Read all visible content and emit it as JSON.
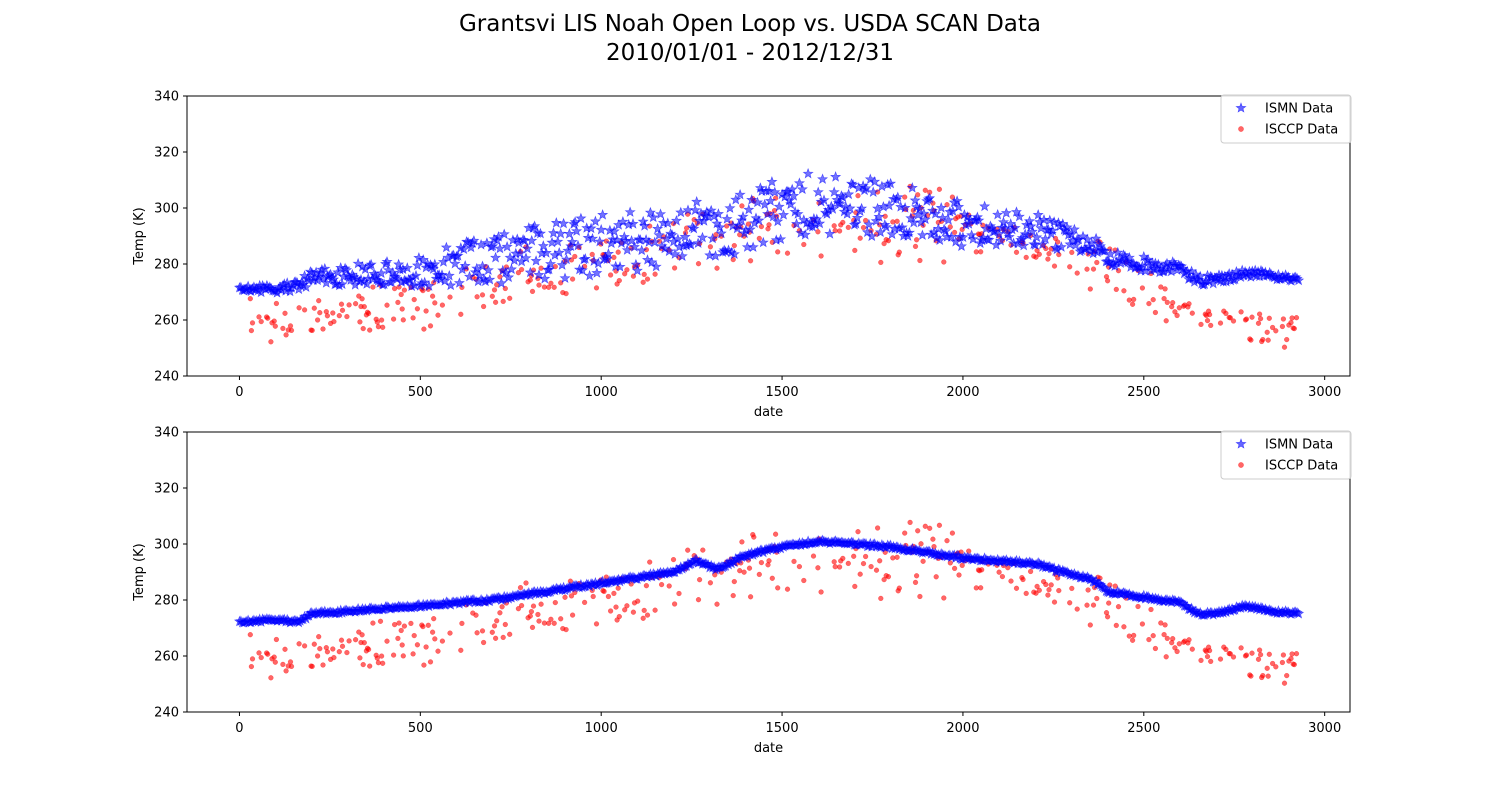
{
  "figure": {
    "title_line1": "Grantsvi LIS Noah Open Loop vs. USDA SCAN Data",
    "title_line2": "2010/01/01 - 2012/12/31"
  },
  "chart_data": [
    {
      "type": "scatter",
      "xlabel": "date",
      "ylabel": "Temp (K)",
      "xlim": [
        -145,
        3070
      ],
      "ylim": [
        240,
        340
      ],
      "xticks": [
        0,
        500,
        1000,
        1500,
        2000,
        2500,
        3000
      ],
      "yticks": [
        240,
        260,
        280,
        300,
        320,
        340
      ],
      "legend_position": "top-right",
      "x_count": 2930,
      "series": [
        {
          "name": "ISMN Data",
          "marker": "star",
          "color": "#0000ff",
          "trend": [
            [
              0,
              271
            ],
            [
              100,
              271
            ],
            [
              160,
              272
            ],
            [
              200,
              275
            ],
            [
              300,
              276
            ],
            [
              400,
              276
            ],
            [
              500,
              278
            ],
            [
              600,
              280
            ],
            [
              700,
              281
            ],
            [
              800,
              284
            ],
            [
              900,
              285
            ],
            [
              1000,
              287
            ],
            [
              1100,
              288
            ],
            [
              1200,
              290
            ],
            [
              1260,
              294
            ],
            [
              1320,
              290
            ],
            [
              1400,
              296
            ],
            [
              1500,
              300
            ],
            [
              1600,
              302
            ],
            [
              1700,
              300
            ],
            [
              1800,
              300
            ],
            [
              1900,
              297
            ],
            [
              2000,
              294
            ],
            [
              2100,
              293
            ],
            [
              2200,
              292
            ],
            [
              2300,
              289
            ],
            [
              2350,
              288
            ],
            [
              2400,
              282
            ],
            [
              2500,
              280
            ],
            [
              2600,
              278
            ],
            [
              2650,
              274
            ],
            [
              2700,
              274
            ],
            [
              2780,
              277
            ],
            [
              2850,
              276
            ],
            [
              2930,
              274
            ]
          ],
          "spread": [
            [
              0,
              1
            ],
            [
              150,
              2
            ],
            [
              400,
              5
            ],
            [
              700,
              9
            ],
            [
              1000,
              11
            ],
            [
              1300,
              10
            ],
            [
              1500,
              12
            ],
            [
              1800,
              10
            ],
            [
              2000,
              8
            ],
            [
              2200,
              6
            ],
            [
              2400,
              3
            ],
            [
              2930,
              1
            ]
          ]
        },
        {
          "name": "ISCCP Data",
          "marker": "circle",
          "color": "#ff0000",
          "trend": [
            [
              0,
              261
            ],
            [
              100,
              259
            ],
            [
              200,
              261
            ],
            [
              300,
              263
            ],
            [
              400,
              265
            ],
            [
              500,
              266
            ],
            [
              600,
              268
            ],
            [
              700,
              271
            ],
            [
              800,
              275
            ],
            [
              900,
              277
            ],
            [
              1000,
              280
            ],
            [
              1100,
              282
            ],
            [
              1200,
              285
            ],
            [
              1300,
              289
            ],
            [
              1400,
              293
            ],
            [
              1500,
              296
            ],
            [
              1600,
              297
            ],
            [
              1700,
              297
            ],
            [
              1800,
              297
            ],
            [
              1900,
              296
            ],
            [
              2000,
              293
            ],
            [
              2100,
              290
            ],
            [
              2200,
              288
            ],
            [
              2300,
              283
            ],
            [
              2400,
              278
            ],
            [
              2500,
              270
            ],
            [
              2600,
              264
            ],
            [
              2700,
              260
            ],
            [
              2800,
              259
            ],
            [
              2930,
              255
            ]
          ],
          "spread": [
            [
              0,
              6
            ],
            [
              500,
              8
            ],
            [
              1000,
              9
            ],
            [
              1500,
              13
            ],
            [
              1800,
              14
            ],
            [
              2000,
              11
            ],
            [
              2300,
              8
            ],
            [
              2600,
              7
            ],
            [
              2930,
              6
            ]
          ]
        }
      ]
    },
    {
      "type": "scatter",
      "xlabel": "date",
      "ylabel": "Temp (K)",
      "xlim": [
        -145,
        3070
      ],
      "ylim": [
        240,
        340
      ],
      "xticks": [
        0,
        500,
        1000,
        1500,
        2000,
        2500,
        3000
      ],
      "yticks": [
        240,
        260,
        280,
        300,
        320,
        340
      ],
      "legend_position": "top-right",
      "x_count": 2930,
      "series": [
        {
          "name": "ISMN Data",
          "marker": "star",
          "color": "#0000ff",
          "trend": [
            [
              0,
              272
            ],
            [
              100,
              273
            ],
            [
              160,
              272
            ],
            [
              200,
              275
            ],
            [
              300,
              276
            ],
            [
              400,
              277
            ],
            [
              500,
              278
            ],
            [
              600,
              279
            ],
            [
              700,
              280
            ],
            [
              800,
              282
            ],
            [
              900,
              284
            ],
            [
              1000,
              286
            ],
            [
              1100,
              288
            ],
            [
              1200,
              290
            ],
            [
              1260,
              294
            ],
            [
              1320,
              291
            ],
            [
              1400,
              296
            ],
            [
              1500,
              299
            ],
            [
              1600,
              301
            ],
            [
              1700,
              300
            ],
            [
              1800,
              299
            ],
            [
              1900,
              297
            ],
            [
              2000,
              295
            ],
            [
              2100,
              294
            ],
            [
              2200,
              293
            ],
            [
              2300,
              289
            ],
            [
              2350,
              288
            ],
            [
              2400,
              283
            ],
            [
              2500,
              281
            ],
            [
              2600,
              279
            ],
            [
              2650,
              275
            ],
            [
              2700,
              275
            ],
            [
              2780,
              278
            ],
            [
              2850,
              276
            ],
            [
              2930,
              275
            ]
          ],
          "spread": [
            [
              0,
              0.6
            ],
            [
              2930,
              0.6
            ]
          ]
        },
        {
          "name": "ISCCP Data",
          "marker": "circle",
          "color": "#ff0000",
          "trend": [
            [
              0,
              261
            ],
            [
              100,
              259
            ],
            [
              200,
              261
            ],
            [
              300,
              263
            ],
            [
              400,
              265
            ],
            [
              500,
              266
            ],
            [
              600,
              268
            ],
            [
              700,
              271
            ],
            [
              800,
              275
            ],
            [
              900,
              277
            ],
            [
              1000,
              280
            ],
            [
              1100,
              282
            ],
            [
              1200,
              285
            ],
            [
              1300,
              289
            ],
            [
              1400,
              293
            ],
            [
              1500,
              296
            ],
            [
              1600,
              297
            ],
            [
              1700,
              297
            ],
            [
              1800,
              297
            ],
            [
              1900,
              296
            ],
            [
              2000,
              293
            ],
            [
              2100,
              290
            ],
            [
              2200,
              288
            ],
            [
              2300,
              283
            ],
            [
              2400,
              278
            ],
            [
              2500,
              270
            ],
            [
              2600,
              264
            ],
            [
              2700,
              260
            ],
            [
              2800,
              259
            ],
            [
              2930,
              255
            ]
          ],
          "spread": [
            [
              0,
              6
            ],
            [
              500,
              8
            ],
            [
              1000,
              9
            ],
            [
              1500,
              13
            ],
            [
              1800,
              14
            ],
            [
              2000,
              11
            ],
            [
              2300,
              8
            ],
            [
              2600,
              7
            ],
            [
              2930,
              6
            ]
          ]
        }
      ]
    }
  ]
}
